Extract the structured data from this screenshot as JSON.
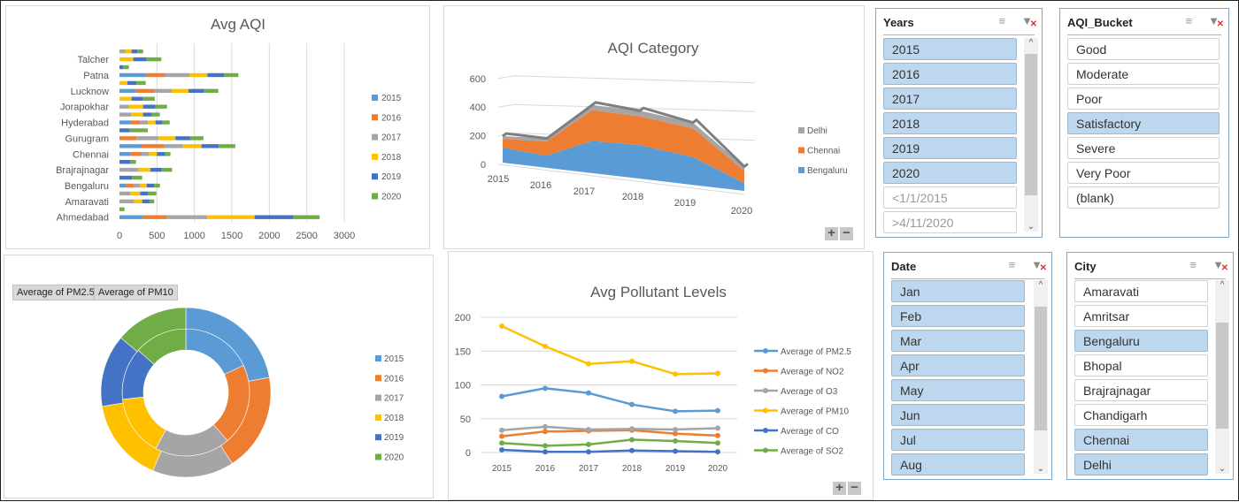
{
  "colors": {
    "2015": "#5B9BD5",
    "2016": "#ED7D31",
    "2017": "#A5A5A5",
    "2018": "#FFC000",
    "2019": "#4472C4",
    "2020": "#70AD47"
  },
  "chart_data": [
    {
      "type": "bar",
      "orientation": "horizontal-stacked",
      "title": "Avg AQI",
      "row_labels": [
        "Ahmedabad",
        "",
        "Amaravati",
        "",
        "Bengaluru",
        "",
        "Brajrajnagar",
        "",
        "Chennai",
        "",
        "Gurugram",
        "",
        "Hyderabad",
        "",
        "Jorapokhar",
        "",
        "Lucknow",
        "",
        "Patna",
        "",
        "Talcher",
        ""
      ],
      "series": [
        {
          "name": "2015",
          "values": [
            315,
            0,
            0,
            0,
            87,
            0,
            0,
            0,
            146,
            295,
            0,
            0,
            146,
            0,
            0,
            0,
            217,
            0,
            362,
            0,
            0,
            0
          ]
        },
        {
          "name": "2016",
          "values": [
            315,
            0,
            0,
            0,
            110,
            0,
            0,
            0,
            150,
            303,
            228,
            0,
            130,
            0,
            0,
            0,
            244,
            0,
            240,
            0,
            0,
            0
          ]
        },
        {
          "name": "2017",
          "values": [
            543,
            0,
            197,
            146,
            79,
            0,
            256,
            0,
            98,
            248,
            291,
            0,
            106,
            161,
            126,
            0,
            236,
            0,
            335,
            0,
            0,
            79
          ]
        },
        {
          "name": "2018",
          "values": [
            630,
            0,
            106,
            130,
            87,
            0,
            158,
            0,
            106,
            248,
            228,
            0,
            98,
            154,
            189,
            161,
            224,
            106,
            236,
            0,
            185,
            83
          ]
        },
        {
          "name": "2019",
          "values": [
            520,
            0,
            98,
            110,
            98,
            169,
            150,
            146,
            110,
            232,
            197,
            138,
            95,
            118,
            165,
            146,
            209,
            118,
            220,
            51,
            177,
            75
          ]
        },
        {
          "name": "2020",
          "values": [
            347,
            67,
            63,
            106,
            79,
            134,
            138,
            75,
            71,
            220,
            177,
            240,
            95,
            106,
            154,
            165,
            189,
            126,
            193,
            75,
            197,
            79
          ]
        }
      ],
      "xticks": [
        0,
        500,
        1000,
        1500,
        2000,
        2500,
        3000
      ],
      "xlim": [
        0,
        3000
      ],
      "grid": true,
      "legend": "right"
    },
    {
      "type": "area",
      "style": "3d-stacked",
      "title": "AQI Category",
      "categories": [
        "2015",
        "2016",
        "2017",
        "2018",
        "2019",
        "2020"
      ],
      "series": [
        {
          "name": "Bengaluru",
          "values": [
            105,
            85,
            225,
            235,
            195,
            55
          ]
        },
        {
          "name": "Chennai",
          "values": [
            60,
            100,
            215,
            200,
            200,
            85
          ]
        },
        {
          "name": "Delhi",
          "values": [
            20,
            20,
            35,
            40,
            40,
            30
          ]
        }
      ],
      "yticks": [
        0,
        200,
        400,
        600
      ],
      "ylim": [
        0,
        600
      ],
      "legend_order": [
        "Delhi",
        "Chennai",
        "Bengaluru"
      ],
      "series_colors": [
        "#5B9BD5",
        "#ED7D31",
        "#A5A5A5"
      ],
      "legend": "right"
    },
    {
      "type": "pie",
      "style": "double-donut",
      "rings": [
        {
          "name": "Average of PM2.5",
          "values": [
            83,
            95,
            88,
            71,
            61,
            62
          ]
        },
        {
          "name": "Average of PM10",
          "values": [
            187,
            157,
            131,
            135,
            116,
            117
          ]
        }
      ],
      "categories": [
        "2015",
        "2016",
        "2017",
        "2018",
        "2019",
        "2020"
      ],
      "legend": "right"
    },
    {
      "type": "line",
      "title": "Avg Pollutant Levels",
      "categories": [
        "2015",
        "2016",
        "2017",
        "2018",
        "2019",
        "2020"
      ],
      "series": [
        {
          "name": "Average of PM2.5",
          "color": "#5B9BD5",
          "values": [
            83,
            95,
            88,
            71,
            61,
            62
          ]
        },
        {
          "name": "Average of NO2",
          "color": "#ED7D31",
          "values": [
            24,
            31,
            32,
            33,
            28,
            25
          ]
        },
        {
          "name": "Average of O3",
          "color": "#A5A5A5",
          "values": [
            33,
            38,
            34,
            35,
            34,
            36
          ]
        },
        {
          "name": "Average of PM10",
          "color": "#FFC000",
          "values": [
            187,
            157,
            131,
            135,
            116,
            117
          ]
        },
        {
          "name": "Average of CO",
          "color": "#4472C4",
          "values": [
            4,
            1,
            1,
            3,
            2,
            1
          ]
        },
        {
          "name": "Average of SO2",
          "color": "#70AD47",
          "values": [
            14,
            10,
            12,
            19,
            17,
            14
          ]
        }
      ],
      "yticks": [
        0,
        50,
        100,
        150,
        200
      ],
      "ylim": [
        0,
        200
      ],
      "grid": true,
      "legend": "right"
    }
  ],
  "pivot_buttons": [
    "Average of PM2.5",
    "Average of PM10"
  ],
  "zoom_buttons": {
    "plus": "+",
    "minus": "−"
  },
  "slicers": {
    "years": {
      "title": "Years",
      "items": [
        {
          "label": "2015",
          "selected": true
        },
        {
          "label": "2016",
          "selected": true
        },
        {
          "label": "2017",
          "selected": true
        },
        {
          "label": "2018",
          "selected": true
        },
        {
          "label": "2019",
          "selected": true
        },
        {
          "label": "2020",
          "selected": true
        },
        {
          "label": "<1/1/2015",
          "selected": false,
          "nodata": true
        },
        {
          "label": ">4/11/2020",
          "selected": false,
          "nodata": true
        }
      ]
    },
    "aqi_bucket": {
      "title": "AQI_Bucket",
      "items": [
        {
          "label": "Good",
          "selected": false
        },
        {
          "label": "Moderate",
          "selected": false
        },
        {
          "label": "Poor",
          "selected": false
        },
        {
          "label": "Satisfactory",
          "selected": true
        },
        {
          "label": "Severe",
          "selected": false
        },
        {
          "label": "Very Poor",
          "selected": false
        },
        {
          "label": "(blank)",
          "selected": false
        }
      ]
    },
    "date": {
      "title": "Date",
      "items": [
        {
          "label": "Jan",
          "selected": true
        },
        {
          "label": "Feb",
          "selected": true
        },
        {
          "label": "Mar",
          "selected": true
        },
        {
          "label": "Apr",
          "selected": true
        },
        {
          "label": "May",
          "selected": true
        },
        {
          "label": "Jun",
          "selected": true
        },
        {
          "label": "Jul",
          "selected": true
        },
        {
          "label": "Aug",
          "selected": true
        }
      ]
    },
    "city": {
      "title": "City",
      "items": [
        {
          "label": "Amaravati",
          "selected": false
        },
        {
          "label": "Amritsar",
          "selected": false
        },
        {
          "label": "Bengaluru",
          "selected": true
        },
        {
          "label": "Bhopal",
          "selected": false
        },
        {
          "label": "Brajrajnagar",
          "selected": false
        },
        {
          "label": "Chandigarh",
          "selected": false
        },
        {
          "label": "Chennai",
          "selected": true
        },
        {
          "label": "Delhi",
          "selected": true
        }
      ]
    }
  },
  "slicer_icons": {
    "multi_select": "multi-select-icon",
    "clear_filter": "clear-filter-icon"
  }
}
